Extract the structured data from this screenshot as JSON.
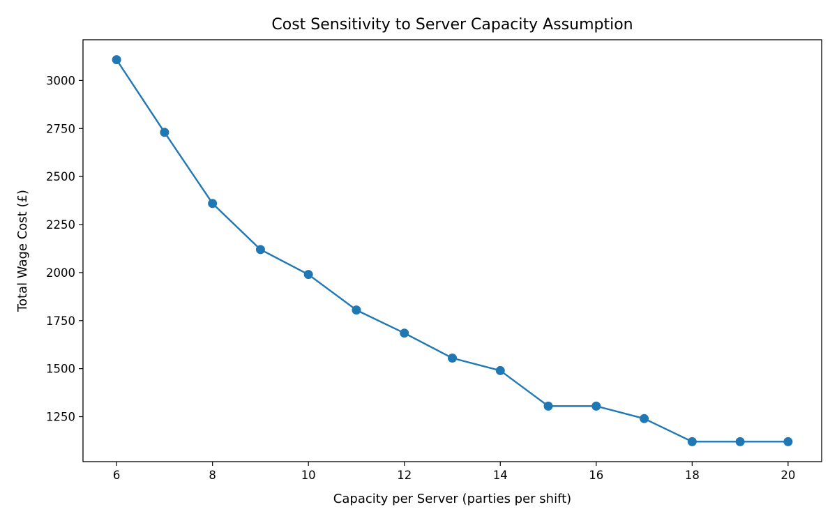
{
  "chart_data": {
    "type": "line",
    "title": "Cost Sensitivity to Server Capacity Assumption",
    "xlabel": "Capacity per Server (parties per shift)",
    "ylabel": "Total Wage Cost (£)",
    "x": [
      6,
      7,
      8,
      9,
      10,
      11,
      12,
      13,
      14,
      15,
      16,
      17,
      18,
      19,
      20
    ],
    "series": [
      {
        "values": [
          3108,
          2730,
          2360,
          2120,
          1990,
          1805,
          1685,
          1555,
          1490,
          1305,
          1305,
          1240,
          1120,
          1120,
          1120
        ],
        "color": "#1f77b4",
        "marker": "circle"
      }
    ],
    "xlim": [
      5.3,
      20.7
    ],
    "ylim": [
      1016,
      3212
    ],
    "xticks": [
      6,
      8,
      10,
      12,
      14,
      16,
      18,
      20
    ],
    "yticks": [
      1250,
      1500,
      1750,
      2000,
      2250,
      2500,
      2750,
      3000
    ],
    "grid": false,
    "legend": "none"
  }
}
